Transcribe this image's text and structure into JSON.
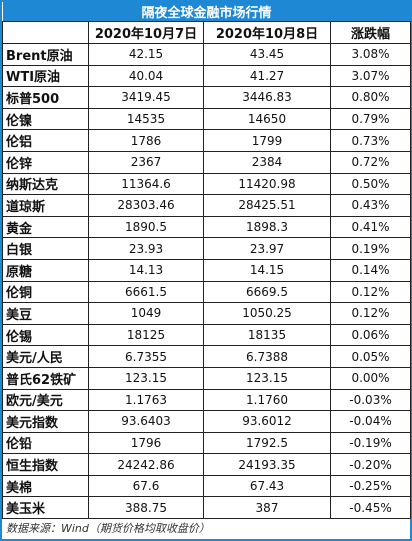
{
  "title": "隔夜全球金融市场行情",
  "columns": [
    "2020年10月7日",
    "2020年10月8日",
    "涨跌幅"
  ],
  "rows": [
    [
      "Brent原油",
      "42.15",
      "43.45",
      "3.08%"
    ],
    [
      "WTI原油",
      "40.04",
      "41.27",
      "3.07%"
    ],
    [
      "标普500",
      "3419.45",
      "3446.83",
      "0.80%"
    ],
    [
      "伦镍",
      "14535",
      "14650",
      "0.79%"
    ],
    [
      "伦铝",
      "1786",
      "1799",
      "0.73%"
    ],
    [
      "伦锌",
      "2367",
      "2384",
      "0.72%"
    ],
    [
      "纳斯达克",
      "11364.6",
      "11420.98",
      "0.50%"
    ],
    [
      "道琼斯",
      "28303.46",
      "28425.51",
      "0.43%"
    ],
    [
      "黄金",
      "1890.5",
      "1898.3",
      "0.41%"
    ],
    [
      "白银",
      "23.93",
      "23.97",
      "0.19%"
    ],
    [
      "原糖",
      "14.13",
      "14.15",
      "0.14%"
    ],
    [
      "伦铜",
      "6661.5",
      "6669.5",
      "0.12%"
    ],
    [
      "美豆",
      "1049",
      "1050.25",
      "0.12%"
    ],
    [
      "伦锡",
      "18125",
      "18135",
      "0.06%"
    ],
    [
      "美元/人民",
      "6.7355",
      "6.7388",
      "0.05%"
    ],
    [
      "普氏62铁矿",
      "123.15",
      "123.15",
      "0.00%"
    ],
    [
      "欧元/美元",
      "1.1763",
      "1.1760",
      "-0.03%"
    ],
    [
      "美元指数",
      "93.6403",
      "93.6012",
      "-0.04%"
    ],
    [
      "伦铅",
      "1796",
      "1792.5",
      "-0.19%"
    ],
    [
      "恒生指数",
      "24242.86",
      "24193.35",
      "-0.20%"
    ],
    [
      "美棉",
      "67.6",
      "67.43",
      "-0.25%"
    ],
    [
      "美玉米",
      "388.75",
      "387",
      "-0.45%"
    ]
  ],
  "footer": "数据来源：Wind（期货价格均取收盘价）"
}
